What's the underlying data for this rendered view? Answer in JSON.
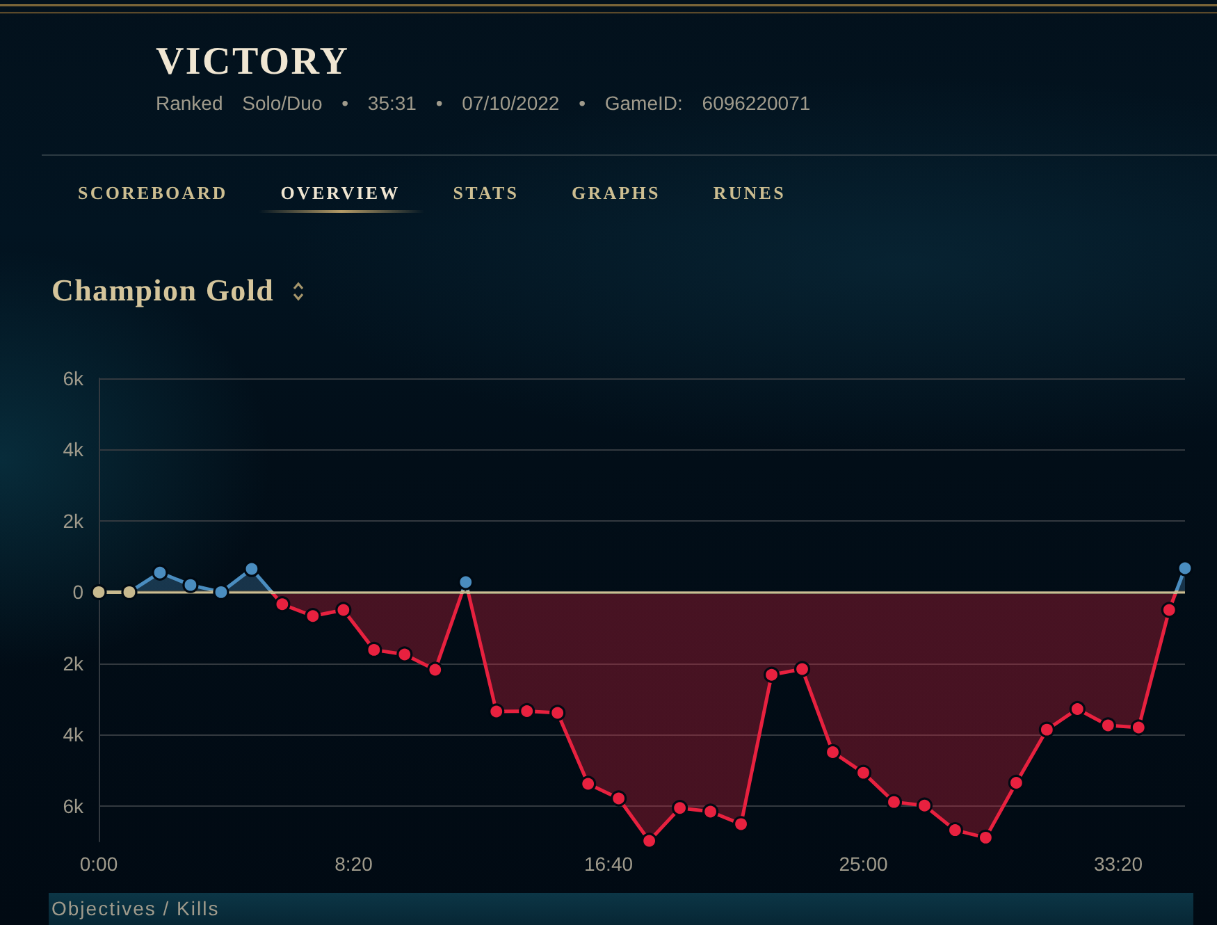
{
  "chart_data": {
    "type": "area",
    "title": "Champion Gold",
    "annotations": [
      "VICTORY",
      "Ranked Solo/Duo • 35:31 • 07/10/2022 • GameID: 6096220071",
      "SCOREBOARD",
      "OVERVIEW",
      "STATS",
      "GRAPHS",
      "RUNES",
      "Objectives / Kills"
    ],
    "x": [
      0,
      60,
      120,
      180,
      240,
      300,
      360,
      420,
      480,
      540,
      600,
      660,
      720,
      780,
      840,
      900,
      960,
      1020,
      1080,
      1140,
      1200,
      1260,
      1320,
      1380,
      1440,
      1500,
      1560,
      1620,
      1680,
      1740,
      1800,
      1860,
      1920,
      1980,
      2040,
      2100,
      2131
    ],
    "values": [
      0,
      0,
      550,
      200,
      0,
      650,
      -340,
      -670,
      -500,
      -1620,
      -1750,
      -2180,
      280,
      -3350,
      -3340,
      -3390,
      -5380,
      -5790,
      -6980,
      -6060,
      -6160,
      -6510,
      -2320,
      -2160,
      -4490,
      -5070,
      -5890,
      -5990,
      -6680,
      -6890,
      -5350,
      -3860,
      -3280,
      -3740,
      -3800,
      -500,
      670
    ],
    "colors": [
      "#c8b98e",
      "#c8b98e",
      "#4a8dc0",
      "#4a8dc0",
      "#4a8dc0",
      "#4a8dc0",
      "#e8213f",
      "#e8213f",
      "#e8213f",
      "#e8213f",
      "#e8213f",
      "#e8213f",
      "#4a8dc0",
      "#e8213f",
      "#e8213f",
      "#e8213f",
      "#e8213f",
      "#e8213f",
      "#e8213f",
      "#e8213f",
      "#e8213f",
      "#e8213f",
      "#e8213f",
      "#e8213f",
      "#e8213f",
      "#e8213f",
      "#e8213f",
      "#e8213f",
      "#e8213f",
      "#e8213f",
      "#e8213f",
      "#e8213f",
      "#e8213f",
      "#e8213f",
      "#e8213f",
      "#e8213f",
      "#4a8dc0"
    ],
    "xlim": [
      0,
      2131
    ],
    "xticks": [
      {
        "value": 0,
        "label": "0:00"
      },
      {
        "value": 500,
        "label": "8:20"
      },
      {
        "value": 1000,
        "label": "16:40"
      },
      {
        "value": 1500,
        "label": "25:00"
      },
      {
        "value": 2000,
        "label": "33:20"
      }
    ],
    "ylim": [
      -7000,
      6000
    ],
    "yticks": [
      {
        "value": -6000,
        "label": "6k"
      },
      {
        "value": -4000,
        "label": "4k"
      },
      {
        "value": -2000,
        "label": "2k"
      },
      0,
      {
        "value": 2000,
        "label": "2k"
      },
      {
        "value": 4000,
        "label": "4k"
      },
      {
        "value": 6000,
        "label": "6k"
      }
    ],
    "ref_lines": [
      {
        "axis": "y",
        "value": 0,
        "color": "#cdbe91"
      }
    ],
    "grid": "y",
    "marker": "circle",
    "line_style": "solid"
  }
}
